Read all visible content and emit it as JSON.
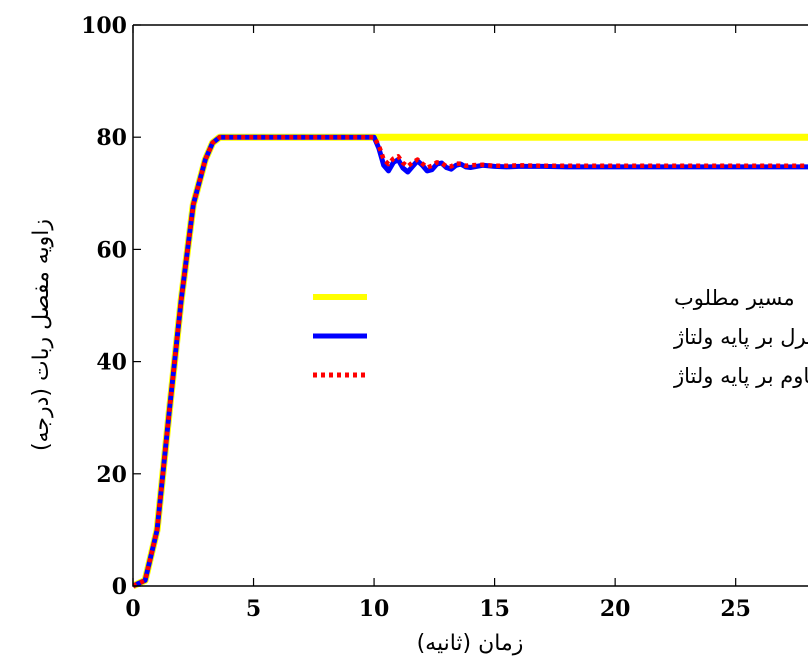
{
  "chart_data": {
    "type": "line",
    "title": "",
    "xlabel": "زمان (ثانیه)",
    "ylabel": "زاویه مفصل ربات (درجه)",
    "xlim": [
      0,
      28
    ],
    "ylim": [
      0,
      100
    ],
    "xticks": [
      0,
      5,
      10,
      15,
      20,
      25
    ],
    "yticks": [
      0,
      20,
      40,
      60,
      80,
      100
    ],
    "grid": false,
    "legend_position": "center",
    "series": [
      {
        "name": "مسیر مطلوب",
        "color": "#ffff00",
        "style": "solid",
        "x": [
          0,
          0.5,
          1,
          1.5,
          2,
          2.5,
          3,
          3.3,
          3.6,
          4,
          28
        ],
        "y": [
          0,
          1,
          10,
          31,
          51,
          68,
          76,
          79,
          80,
          80,
          80
        ]
      },
      {
        "name": "کنترل بر پایه ولتاژ",
        "color": "#0000ff",
        "style": "solid",
        "x": [
          0,
          0.5,
          1,
          1.5,
          2,
          2.5,
          3,
          3.3,
          3.6,
          4,
          10,
          10.2,
          10.4,
          10.6,
          10.8,
          11,
          11.2,
          11.4,
          11.6,
          11.8,
          12,
          12.2,
          12.4,
          12.6,
          12.8,
          13,
          13.2,
          13.4,
          13.6,
          13.8,
          14,
          14.5,
          15,
          15.5,
          16,
          17,
          18,
          28
        ],
        "y": [
          0,
          1,
          10,
          31,
          51,
          68,
          76,
          79,
          80,
          80,
          80,
          78,
          75,
          74,
          75.5,
          76,
          74.5,
          73.8,
          74.8,
          75.8,
          75,
          74,
          74.2,
          75.2,
          75.4,
          74.6,
          74.3,
          75,
          75.2,
          74.7,
          74.6,
          75,
          74.8,
          74.7,
          74.8,
          74.8,
          74.7,
          74.7
        ]
      },
      {
        "name": "کنترل مقاوم بر پایه ولتاژ",
        "color": "#ff0000",
        "style": "dotted",
        "x": [
          0,
          0.5,
          1,
          1.5,
          2,
          2.5,
          3,
          3.3,
          3.6,
          4,
          10,
          10.2,
          10.4,
          10.6,
          10.8,
          11,
          11.2,
          11.4,
          11.6,
          11.8,
          12,
          12.2,
          12.4,
          12.6,
          12.8,
          13,
          13.2,
          13.4,
          13.6,
          13.8,
          14,
          14.5,
          15,
          15.5,
          16,
          17,
          18,
          28
        ],
        "y": [
          0,
          1,
          10,
          31,
          51,
          68,
          76,
          79,
          80,
          80,
          80,
          78.5,
          76,
          75.2,
          76.2,
          76.6,
          75.4,
          74.8,
          75.5,
          76,
          75.3,
          74.6,
          74.9,
          75.5,
          75.4,
          74.8,
          74.8,
          75.3,
          75.3,
          74.9,
          75,
          75.1,
          74.9,
          74.9,
          75,
          74.9,
          74.9,
          74.9
        ]
      }
    ]
  }
}
